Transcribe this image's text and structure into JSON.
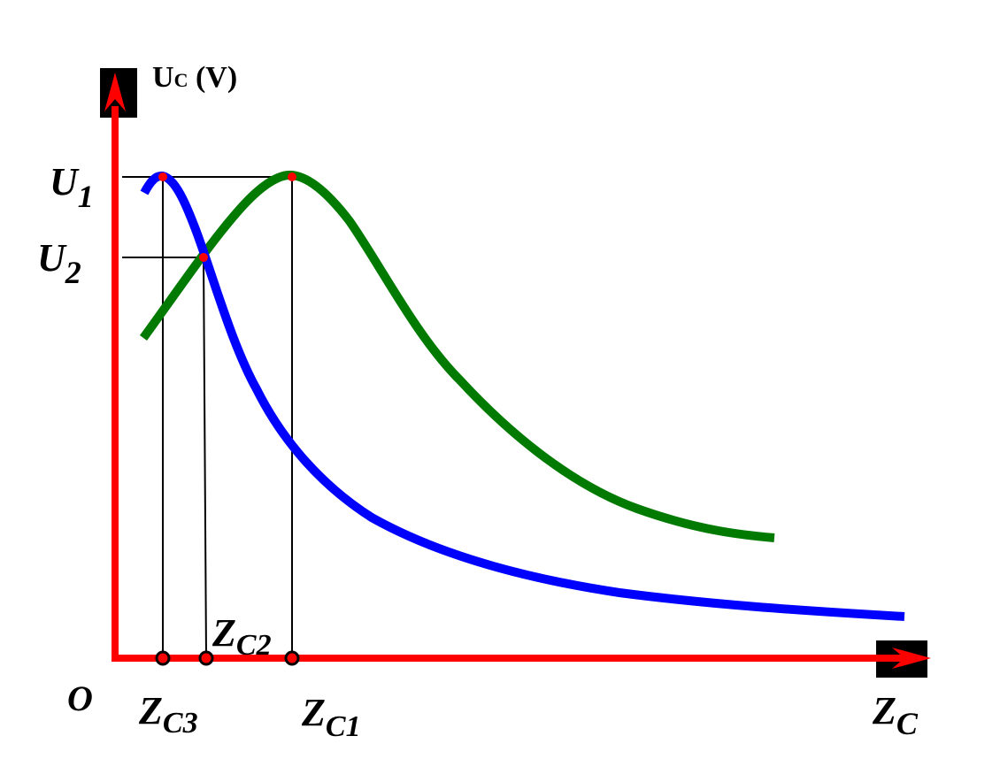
{
  "labels": {
    "y_axis_main": "U",
    "y_axis_sub": "C",
    "y_axis_unit": " (V)",
    "origin": "O",
    "u1_main": "U",
    "u1_sub": "1",
    "u2_main": "U",
    "u2_sub": "2",
    "zc3_main": "Z",
    "zc3_sub": "C3",
    "zc2_main": "Z",
    "zc2_sub": "C2",
    "zc1_main": "Z",
    "zc1_sub": "C1",
    "x_axis_main": "Z",
    "x_axis_sub": "C"
  },
  "colors": {
    "axis": "#ff0000",
    "axis_arrow_box": "#000000",
    "curve_blue": "#0000ff",
    "curve_green": "#007a00",
    "guide": "#000000",
    "marker": "#ff0000"
  }
}
